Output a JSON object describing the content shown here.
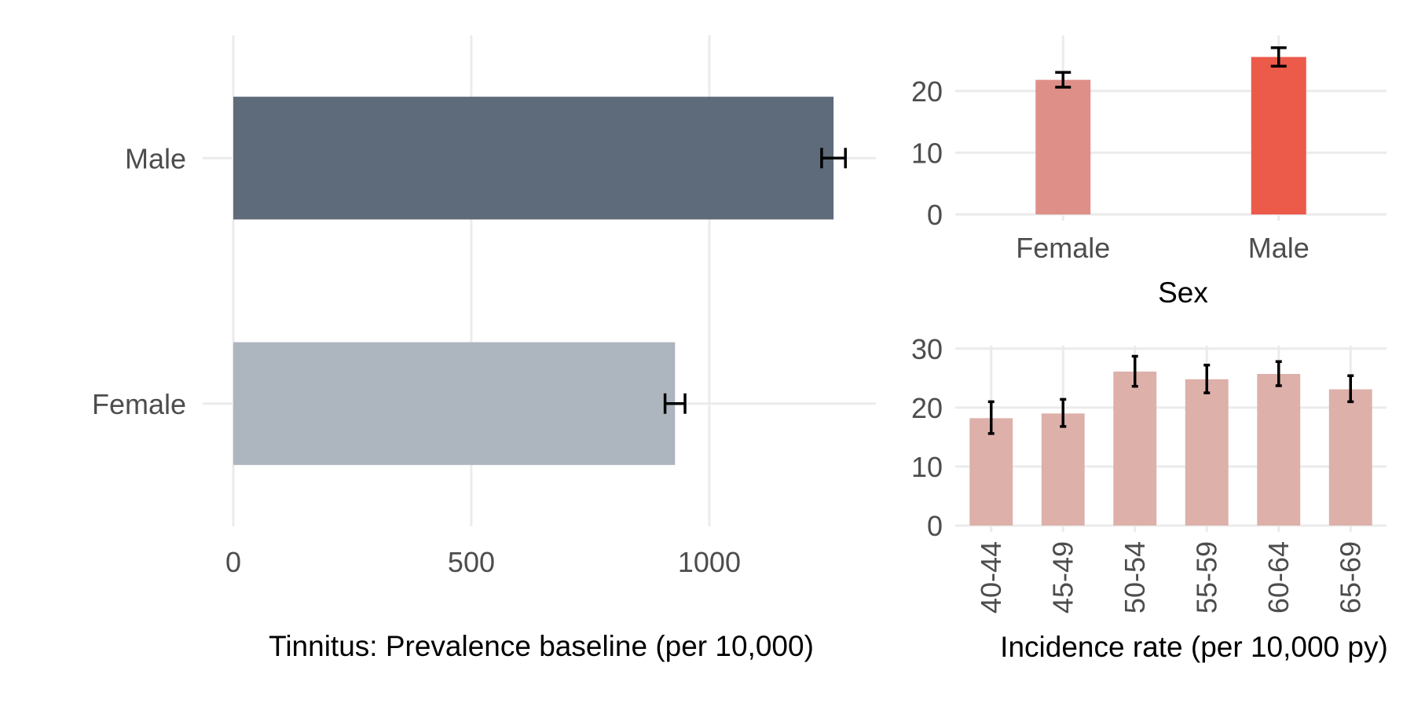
{
  "chart_data": [
    {
      "id": "prevalence",
      "type": "bar",
      "orientation": "horizontal",
      "xlabel": "Tinnitus: Prevalence baseline (per 10,000)",
      "ylabel": "",
      "xlim": [
        0,
        1350
      ],
      "xticks": [
        0,
        500,
        1000
      ],
      "grid": true,
      "categories": [
        "Female",
        "Male"
      ],
      "values": [
        928,
        1261
      ],
      "error_low": [
        907,
        1236
      ],
      "error_high": [
        949,
        1286
      ],
      "colors": [
        "#adb5bf",
        "#5d6b7a"
      ]
    },
    {
      "id": "incidence_by_sex",
      "type": "bar",
      "xlabel": "Sex",
      "ylabel": "",
      "ylim": [
        0,
        29
      ],
      "yticks": [
        0,
        10,
        20
      ],
      "grid": true,
      "categories": [
        "Female",
        "Male"
      ],
      "values": [
        21.8,
        25.5
      ],
      "error_low": [
        20.6,
        24.0
      ],
      "error_high": [
        23.0,
        27.0
      ],
      "colors": [
        "#de9088",
        "#ec5a4a"
      ]
    },
    {
      "id": "incidence_by_age",
      "type": "bar",
      "xlabel": "Incidence rate (per 10,000 py)",
      "ylabel": "",
      "ylim": [
        0,
        30.5
      ],
      "yticks": [
        0,
        10,
        20,
        30
      ],
      "grid": true,
      "categories": [
        "40-44",
        "45-49",
        "50-54",
        "55-59",
        "60-64",
        "65-69"
      ],
      "values": [
        18.2,
        19.0,
        26.1,
        24.8,
        25.7,
        23.1
      ],
      "error_low": [
        15.6,
        16.8,
        23.6,
        22.5,
        23.7,
        21.0
      ],
      "error_high": [
        21.0,
        21.4,
        28.7,
        27.2,
        27.8,
        25.4
      ],
      "colors": [
        "#ddb0aa"
      ]
    }
  ]
}
